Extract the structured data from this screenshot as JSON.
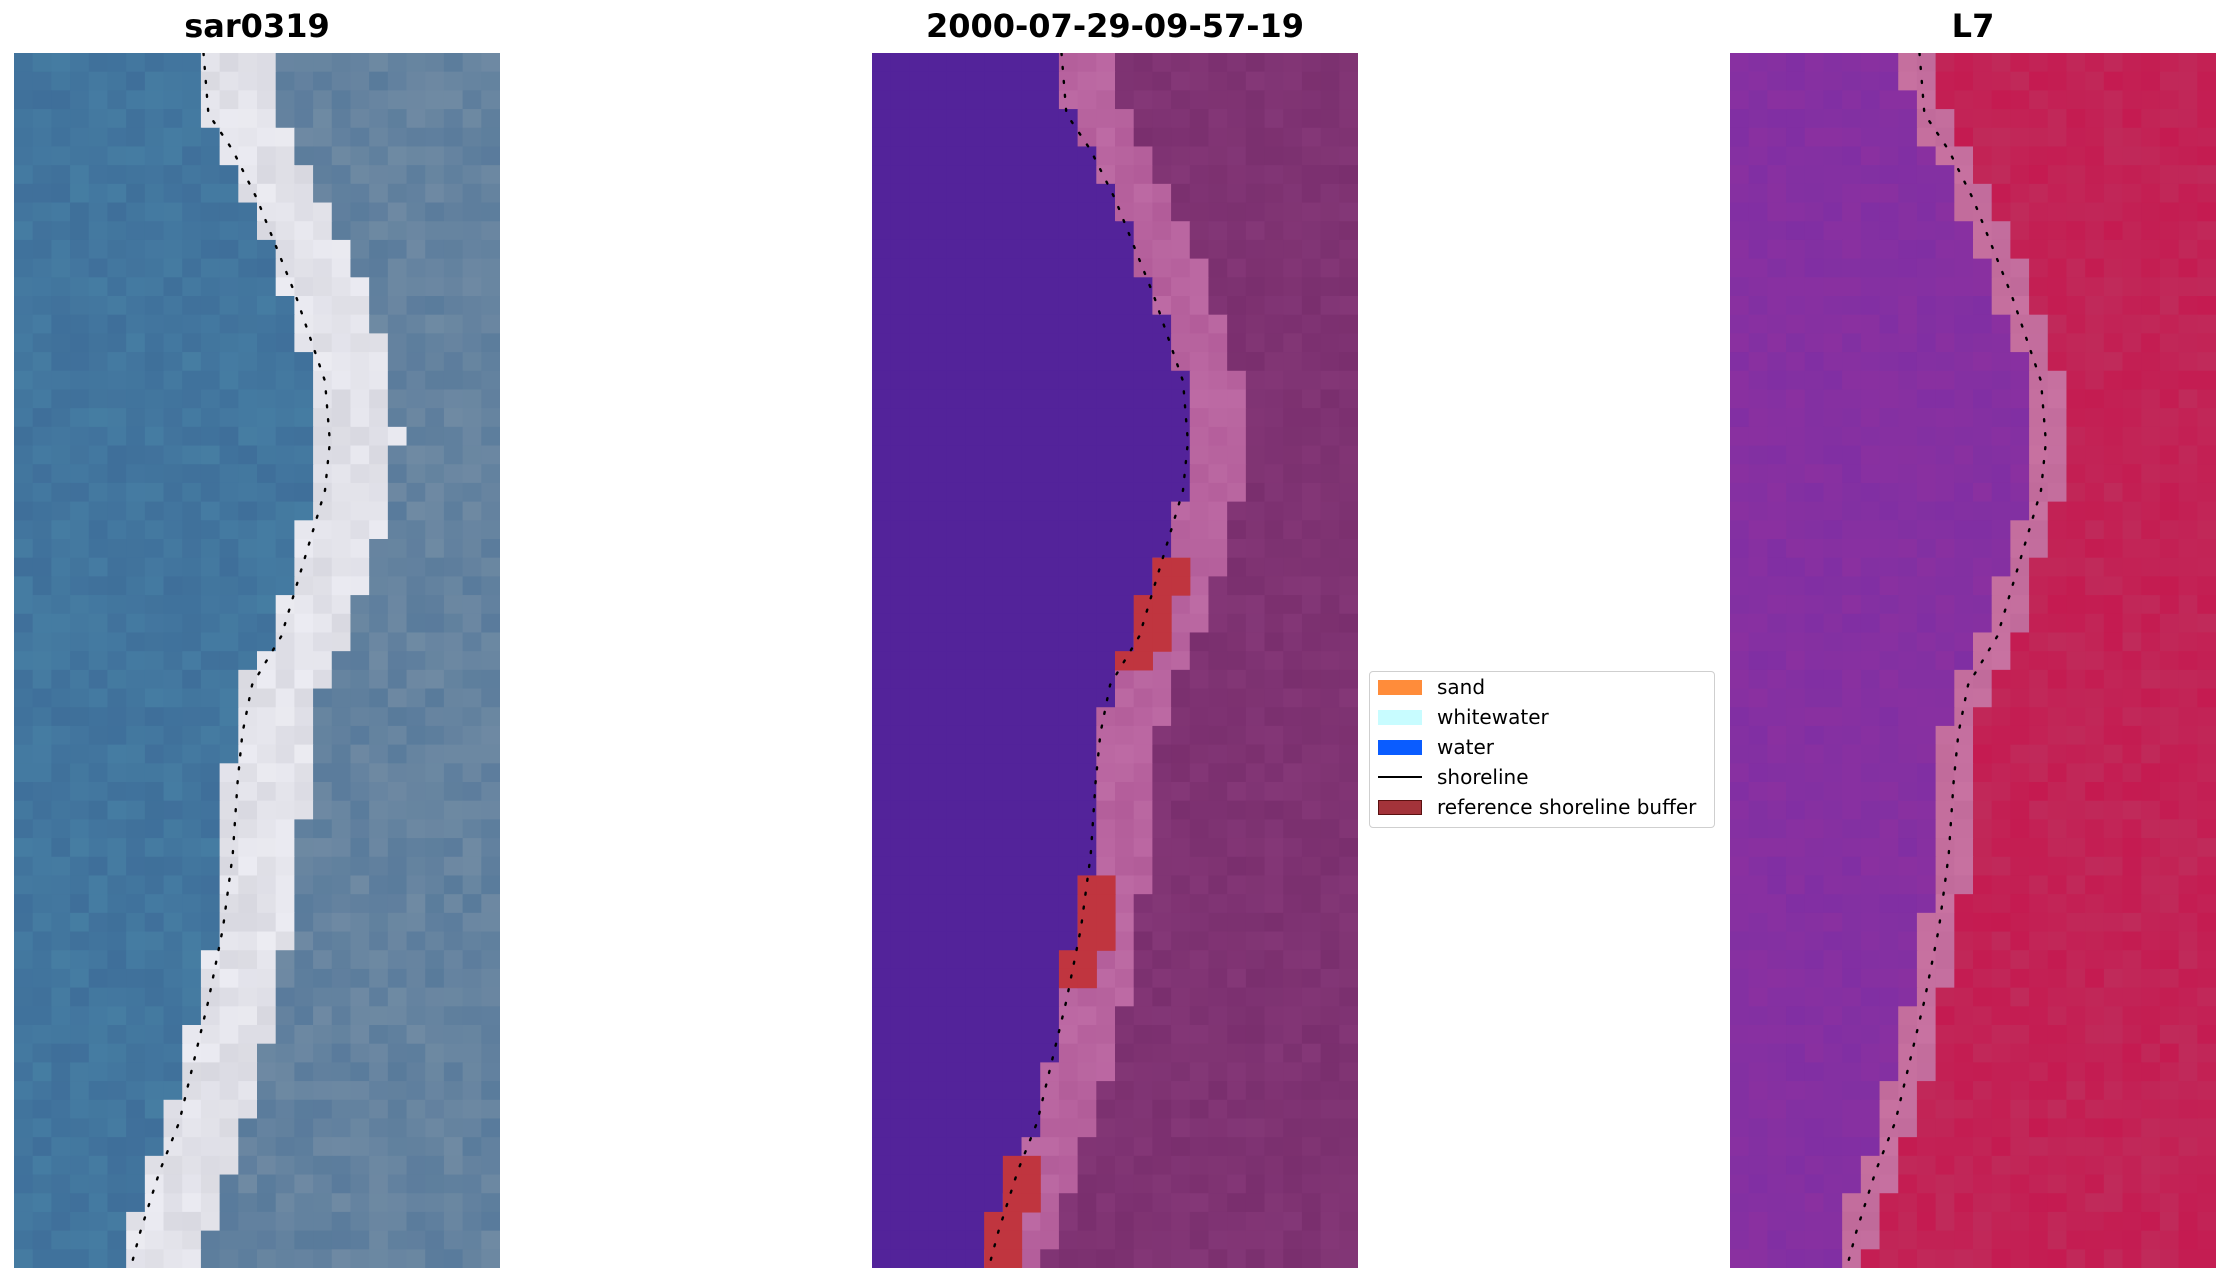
{
  "panels": [
    {
      "title": "sar0319"
    },
    {
      "title": "2000-07-29-09-57-19"
    },
    {
      "title": "L7"
    }
  ],
  "legend": {
    "items": [
      {
        "label": "sand",
        "kind": "patch",
        "color": "#ff8c3a",
        "edge": "#ff8c3a"
      },
      {
        "label": "whitewater",
        "kind": "patch",
        "color": "#c8fcff",
        "edge": "#c8fcff"
      },
      {
        "label": "water",
        "kind": "patch",
        "color": "#0a5cff",
        "edge": "#0a5cff"
      },
      {
        "label": "shoreline",
        "kind": "line",
        "color": "#000000"
      },
      {
        "label": "reference shoreline buffer",
        "kind": "patch",
        "color": "#a3333a",
        "edge": "#5a1010"
      }
    ]
  },
  "colors": {
    "rgb_water": "#3f6f9a",
    "rgb_land": "#6f8aa3",
    "rgb_beach": "#d8d8e0",
    "classified_water": "#53239a",
    "classified_land": "#7a2f6e",
    "classified_beach": "#b25c99",
    "classified_buffer": "#c0353f",
    "index_water": "#8a30a0",
    "index_land": "#c02a5a",
    "index_beach": "#c06a9a"
  },
  "shoreline": [
    [
      0.39,
      0.0
    ],
    [
      0.4,
      0.05
    ],
    [
      0.45,
      0.08
    ],
    [
      0.5,
      0.12
    ],
    [
      0.58,
      0.2
    ],
    [
      0.64,
      0.27
    ],
    [
      0.65,
      0.32
    ],
    [
      0.64,
      0.36
    ],
    [
      0.61,
      0.4
    ],
    [
      0.58,
      0.44
    ],
    [
      0.55,
      0.48
    ],
    [
      0.49,
      0.52
    ],
    [
      0.47,
      0.56
    ],
    [
      0.46,
      0.6
    ],
    [
      0.45,
      0.66
    ],
    [
      0.43,
      0.72
    ],
    [
      0.4,
      0.78
    ],
    [
      0.37,
      0.83
    ],
    [
      0.34,
      0.88
    ],
    [
      0.3,
      0.92
    ],
    [
      0.26,
      0.97
    ],
    [
      0.24,
      1.0
    ]
  ]
}
